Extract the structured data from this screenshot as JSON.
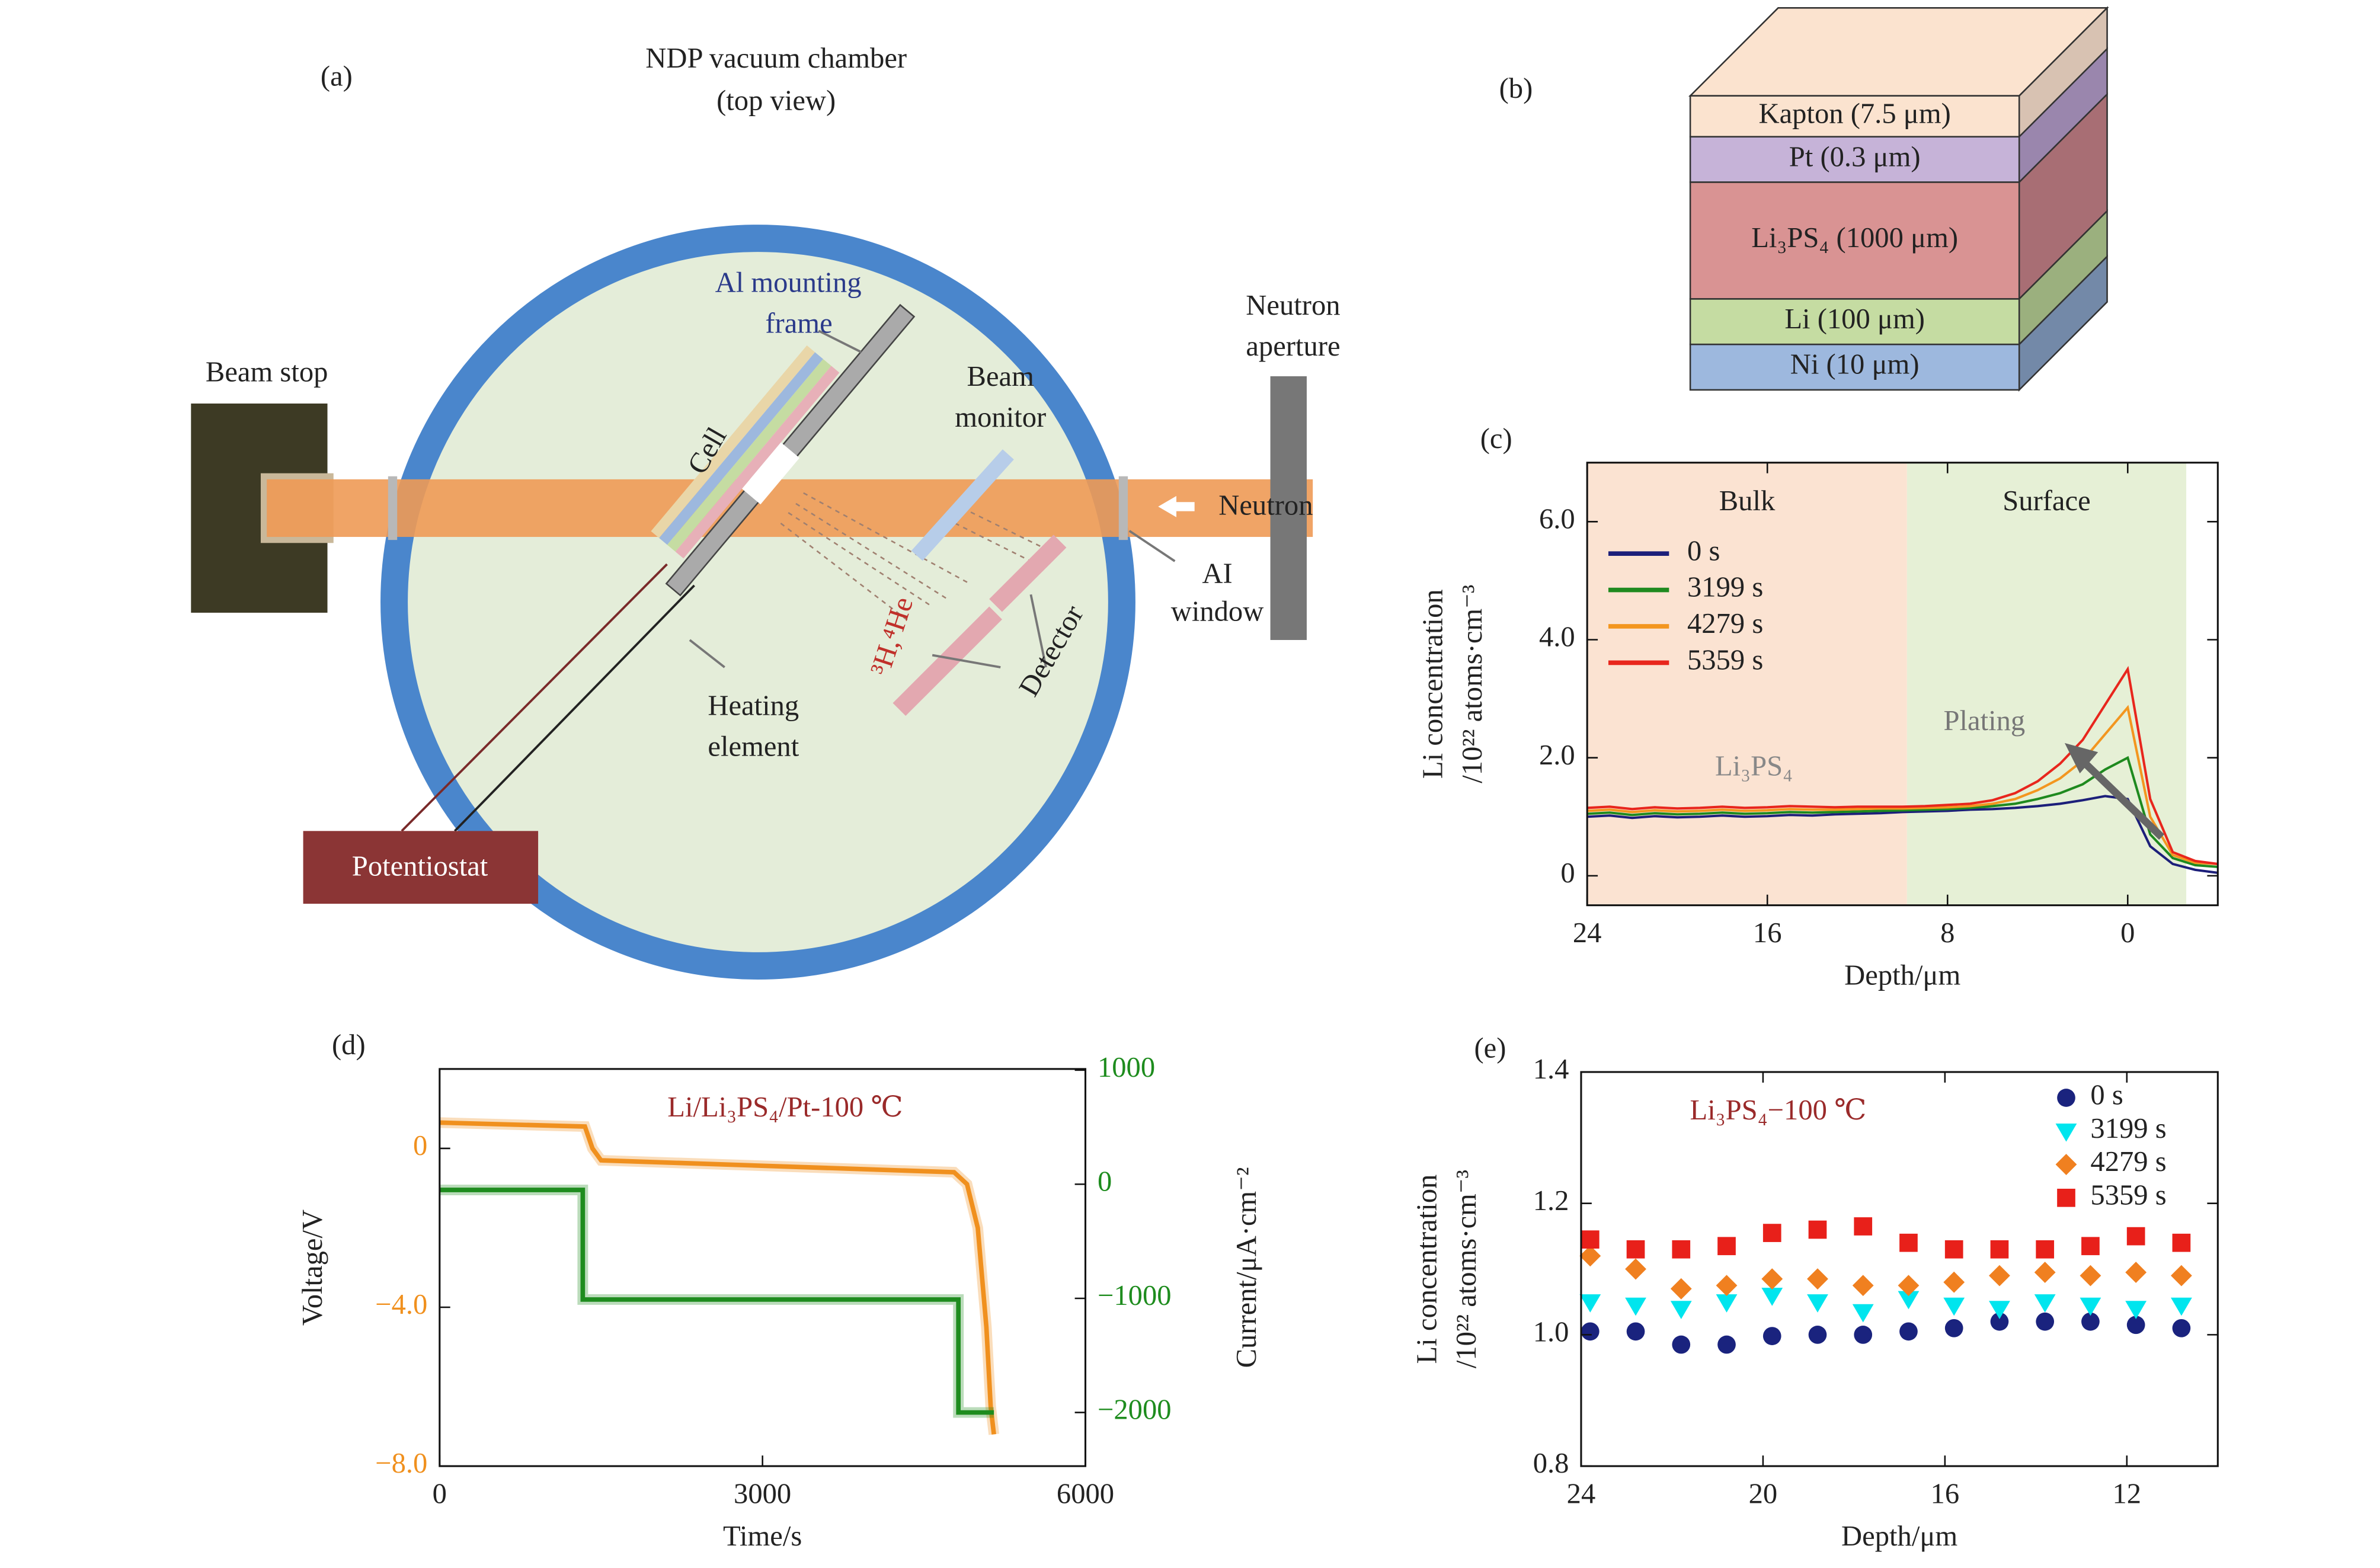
{
  "diagram_a": {
    "panel": "(a)",
    "title": [
      "NDP vacuum chamber",
      "(top view)"
    ],
    "frame": [
      "Al mounting",
      "frame"
    ],
    "beam_stop": "Beam stop",
    "cell": "Cell",
    "monitor": [
      "Beam",
      "monitor"
    ],
    "aperture": [
      "Neutron",
      "aperture"
    ],
    "neutron": "Neutron",
    "window": [
      "AI",
      "window"
    ],
    "detector": "Detector",
    "particles": "³H,⁴He",
    "heater": [
      "Heating",
      "element"
    ],
    "potentiostat": "Potentiostat"
  },
  "diagram_b": {
    "panel": "(b)",
    "layers": [
      {
        "name": "Kapton (7.5 μm)",
        "color": "#fbe3cf",
        "side": "#d8c2b2"
      },
      {
        "name": "Pt (0.3 μm)",
        "color": "#c6b3d8",
        "side": "#9a86ad"
      },
      {
        "name": "Li₃PS₄ (1000 μm)",
        "color": "#d99393",
        "side": "#a86e74"
      },
      {
        "name": "Li (100 μm)",
        "color": "#c5dca2",
        "side": "#9bb07e"
      },
      {
        "name": "Ni (10 μm)",
        "color": "#9db8de",
        "side": "#7389a8"
      }
    ]
  },
  "chart_data": [
    {
      "type": "line",
      "panel": "(c)",
      "xlabel": "Depth/μm",
      "ylabel": [
        "Li concentration",
        "/10²² atoms·cm⁻³"
      ],
      "xlim": [
        24,
        -4
      ],
      "ylim": [
        -0.5,
        7
      ],
      "xticks": [
        24,
        16,
        8,
        0
      ],
      "yticks": [
        0,
        {
          "value": 2,
          "label": "2.0"
        },
        {
          "value": 4,
          "label": "4.0"
        },
        {
          "value": 6,
          "label": "6.0"
        }
      ],
      "regions": [
        {
          "name": "Bulk",
          "from": 24,
          "to": 9.8,
          "color": "#fbe3d2"
        },
        {
          "name": "Surface",
          "from": 9.8,
          "to": -2.6,
          "color": "#e6f0d6"
        }
      ],
      "annotations": [
        "Li₃PS₄",
        "Plating"
      ],
      "legend": "upper left",
      "x": [
        24,
        23,
        22,
        21,
        20,
        19,
        18,
        17,
        16,
        15,
        14,
        13,
        12,
        11,
        10,
        9,
        8,
        7,
        6,
        5,
        4,
        3,
        2,
        1,
        0,
        -1,
        -2,
        -3,
        -4
      ],
      "series": [
        {
          "name": "0 s",
          "color": "#1c1f7a",
          "values": [
            1.0,
            1.02,
            0.98,
            1.01,
            0.99,
            1.0,
            1.02,
            1.0,
            1.01,
            1.03,
            1.02,
            1.04,
            1.05,
            1.06,
            1.08,
            1.09,
            1.1,
            1.12,
            1.13,
            1.15,
            1.18,
            1.22,
            1.28,
            1.35,
            1.3,
            0.5,
            0.2,
            0.1,
            0.05
          ]
        },
        {
          "name": "3199 s",
          "color": "#1f8a1f",
          "values": [
            1.05,
            1.07,
            1.03,
            1.06,
            1.04,
            1.05,
            1.07,
            1.05,
            1.06,
            1.08,
            1.07,
            1.08,
            1.09,
            1.1,
            1.11,
            1.12,
            1.13,
            1.15,
            1.18,
            1.22,
            1.3,
            1.4,
            1.55,
            1.8,
            2.0,
            0.7,
            0.3,
            0.18,
            0.15
          ]
        },
        {
          "name": "4279 s",
          "color": "#f3961f",
          "values": [
            1.1,
            1.12,
            1.08,
            1.11,
            1.09,
            1.1,
            1.12,
            1.1,
            1.11,
            1.13,
            1.12,
            1.12,
            1.13,
            1.14,
            1.14,
            1.15,
            1.16,
            1.18,
            1.22,
            1.3,
            1.45,
            1.65,
            1.95,
            2.4,
            2.85,
            1.0,
            0.35,
            0.22,
            0.2
          ]
        },
        {
          "name": "5359 s",
          "color": "#e8261d",
          "values": [
            1.15,
            1.17,
            1.13,
            1.16,
            1.14,
            1.15,
            1.17,
            1.15,
            1.16,
            1.18,
            1.17,
            1.16,
            1.17,
            1.17,
            1.17,
            1.18,
            1.2,
            1.22,
            1.28,
            1.4,
            1.6,
            1.9,
            2.3,
            2.9,
            3.5,
            1.3,
            0.4,
            0.25,
            0.2
          ]
        }
      ]
    },
    {
      "type": "line",
      "panel": "(d)",
      "xlabel": "Time/s",
      "ylabel": "Voltage/V",
      "y2label": "Current/μA·cm⁻²",
      "annotation": "Li/Li₃PS₄/Pt-100 ℃",
      "xlim": [
        0,
        6000
      ],
      "ylim": [
        -8,
        2
      ],
      "y2lim": [
        -2470,
        1010
      ],
      "xticks": [
        0,
        3000,
        6000
      ],
      "yticks": [
        {
          "value": -8,
          "label": "−8.0"
        },
        {
          "value": -4,
          "label": "−4.0"
        },
        0
      ],
      "y2ticks": [
        {
          "value": -2000,
          "label": "−2000"
        },
        {
          "value": -1000,
          "label": "−1000"
        },
        0,
        1000
      ],
      "ycolor": "#f0901e",
      "y2color": "#1e8c1e",
      "series": [
        {
          "name": "Voltage",
          "color": "#f0901e",
          "x": [
            0,
            1350,
            1420,
            1500,
            4780,
            4900,
            5000,
            5080,
            5120,
            5150
          ],
          "values": [
            0.65,
            0.55,
            0.0,
            -0.3,
            -0.6,
            -0.9,
            -2.0,
            -4.5,
            -6.5,
            -7.2
          ]
        },
        {
          "name": "Current",
          "color": "#1e8c1e",
          "axis": "y2",
          "x": [
            0,
            1330,
            1330,
            4820,
            4820,
            5150
          ],
          "values": [
            -50,
            -50,
            -1010,
            -1010,
            -2000,
            -2000
          ]
        }
      ]
    },
    {
      "type": "scatter",
      "panel": "(e)",
      "xlabel": "Depth/μm",
      "ylabel": [
        "Li concentration",
        "/10²² atoms·cm⁻³"
      ],
      "annotation": "Li₃PS₄−100 ℃",
      "xlim": [
        24,
        10
      ],
      "ylim": [
        0.8,
        1.4
      ],
      "xticks": [
        24,
        20,
        16,
        12
      ],
      "yticks": [
        {
          "value": 0.8,
          "label": "0.8"
        },
        {
          "value": 1,
          "label": "1.0"
        },
        {
          "value": 1.2,
          "label": "1.2"
        },
        {
          "value": 1.4,
          "label": "1.4"
        }
      ],
      "legend": "upper right",
      "x": [
        23.8,
        22.8,
        21.8,
        20.8,
        19.8,
        18.8,
        17.8,
        16.8,
        15.8,
        14.8,
        13.8,
        12.8,
        11.8,
        10.8
      ],
      "series": [
        {
          "name": "0 s",
          "color": "#1a237e",
          "marker": "circle",
          "values": [
            1.005,
            1.005,
            0.985,
            0.985,
            0.998,
            1.0,
            1.0,
            1.005,
            1.01,
            1.02,
            1.02,
            1.02,
            1.015,
            1.01
          ]
        },
        {
          "name": "3199 s",
          "color": "#00e5ee",
          "marker": "triangle-down",
          "values": [
            1.05,
            1.045,
            1.04,
            1.05,
            1.06,
            1.05,
            1.035,
            1.055,
            1.045,
            1.04,
            1.05,
            1.045,
            1.04,
            1.045
          ]
        },
        {
          "name": "4279 s",
          "color": "#f08020",
          "marker": "diamond",
          "values": [
            1.12,
            1.1,
            1.07,
            1.075,
            1.085,
            1.085,
            1.075,
            1.075,
            1.08,
            1.09,
            1.095,
            1.09,
            1.095,
            1.09
          ]
        },
        {
          "name": "5359 s",
          "color": "#e8201a",
          "marker": "square",
          "values": [
            1.145,
            1.13,
            1.13,
            1.135,
            1.155,
            1.16,
            1.165,
            1.14,
            1.13,
            1.13,
            1.13,
            1.135,
            1.15,
            1.14
          ]
        }
      ]
    }
  ]
}
